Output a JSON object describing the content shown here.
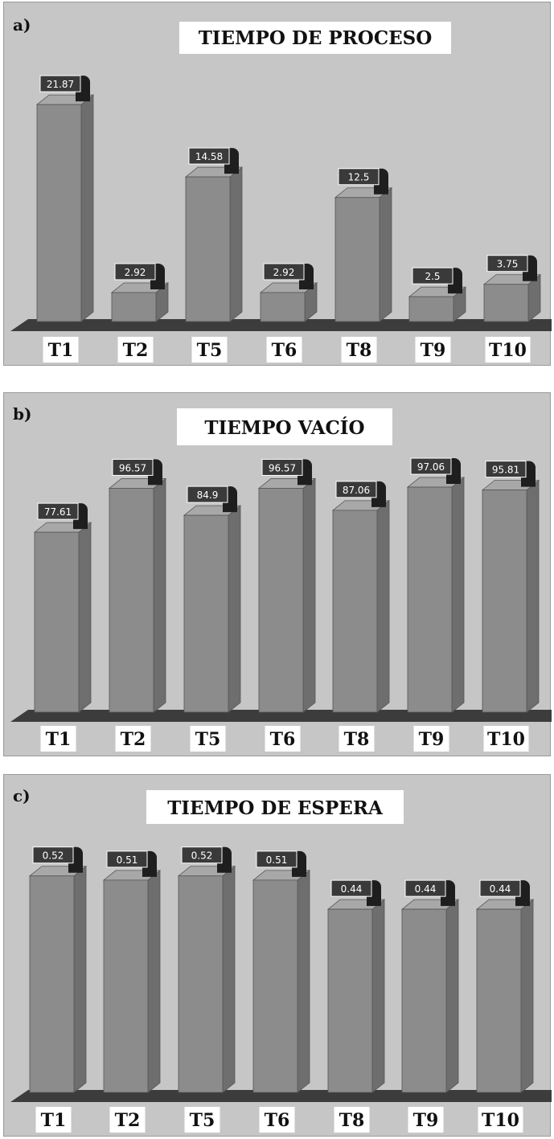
{
  "chart_data": [
    {
      "type": "bar",
      "panel_label": "a)",
      "title": "TIEMPO DE PROCESO",
      "categories": [
        "T1",
        "T2",
        "T5",
        "T6",
        "T8",
        "T9",
        "T10"
      ],
      "values": [
        21.87,
        2.92,
        14.58,
        2.92,
        12.5,
        2.5,
        3.75
      ],
      "value_labels": [
        "21.87",
        "2.92",
        "14.58",
        "2.92",
        "12.5",
        "2.5",
        "3.75"
      ],
      "ylim": [
        0,
        23.5
      ],
      "grid": false
    },
    {
      "type": "bar",
      "panel_label": "b)",
      "title": "TIEMPO VACÍO",
      "categories": [
        "T1",
        "T2",
        "T5",
        "T6",
        "T8",
        "T9",
        "T10"
      ],
      "values": [
        77.61,
        96.57,
        84.9,
        96.57,
        87.06,
        97.06,
        95.81
      ],
      "value_labels": [
        "77.61",
        "96.57",
        "84.9",
        "96.57",
        "87.06",
        "97.06",
        "95.81"
      ],
      "ylim": [
        0,
        104
      ],
      "grid": false
    },
    {
      "type": "bar",
      "panel_label": "c)",
      "title": "TIEMPO DE ESPERA",
      "categories": [
        "T1",
        "T2",
        "T5",
        "T6",
        "T8",
        "T9",
        "T10"
      ],
      "values": [
        0.52,
        0.51,
        0.52,
        0.51,
        0.44,
        0.44,
        0.44
      ],
      "value_labels": [
        "0.52",
        "0.51",
        "0.52",
        "0.51",
        "0.44",
        "0.44",
        "0.44"
      ],
      "ylim": [
        0,
        0.56
      ],
      "grid": false
    }
  ],
  "colors": {
    "panel_background": "#c6c6c6",
    "bar_front": "#8c8c8c",
    "bar_side": "#6e6e6e",
    "bar_top": "#a8a8a8",
    "floor": "#3c3c3c",
    "value_box": "#3a3a3a"
  }
}
